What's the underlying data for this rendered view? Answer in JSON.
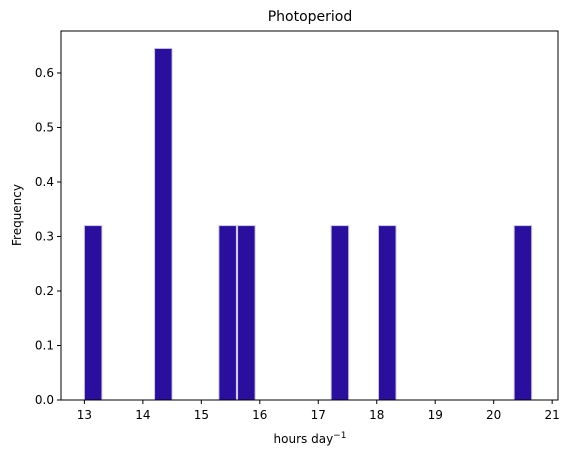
{
  "chart_data": {
    "type": "bar",
    "title": "Photoperiod",
    "xlabel": "hours day",
    "xlabel_superscript": "−1",
    "ylabel": "Frequency",
    "xlim": [
      12.6,
      21.1
    ],
    "ylim": [
      0,
      0.677
    ],
    "xticks": [
      13,
      14,
      15,
      16,
      17,
      18,
      19,
      20,
      21
    ],
    "yticks": [
      0.0,
      0.1,
      0.2,
      0.3,
      0.4,
      0.5,
      0.6
    ],
    "bin_width": 0.3,
    "bars": [
      {
        "x0": 13.0,
        "x1": 13.3,
        "value": 0.32
      },
      {
        "x0": 14.2,
        "x1": 14.5,
        "value": 0.645
      },
      {
        "x0": 15.3,
        "x1": 15.6,
        "value": 0.32
      },
      {
        "x0": 15.62,
        "x1": 15.92,
        "value": 0.32
      },
      {
        "x0": 17.22,
        "x1": 17.52,
        "value": 0.32
      },
      {
        "x0": 18.03,
        "x1": 18.33,
        "value": 0.32
      },
      {
        "x0": 20.35,
        "x1": 20.65,
        "value": 0.32
      }
    ],
    "bar_color": "#2a0f9e",
    "bar_edge_color": "#c9c9e6",
    "grid": false,
    "legend": "none"
  }
}
